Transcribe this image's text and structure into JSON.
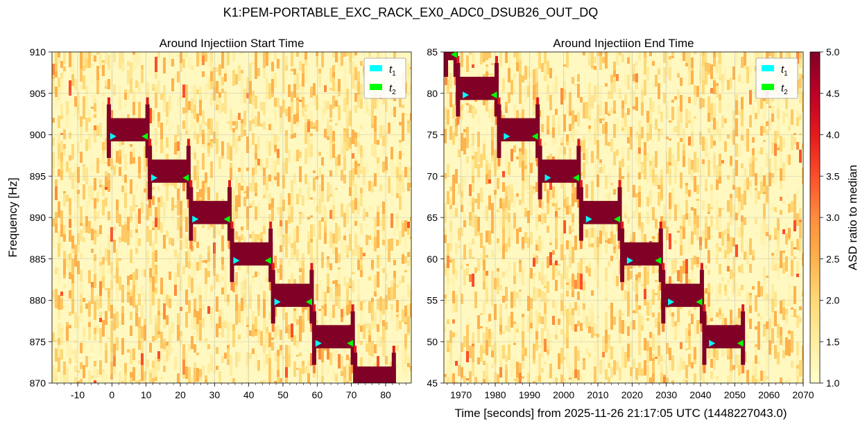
{
  "figure": {
    "title": "K1:PEM-PORTABLE_EXC_RACK_EX0_ADC0_DSUB26_OUT_DQ",
    "xlabel": "Time [seconds] from 2025-11-26 21:17:05 UTC (1448227043.0)"
  },
  "colors": {
    "low": "#fffecb",
    "mid_low": "#fed976",
    "mid": "#fd8d3c",
    "high": "#e31a1c",
    "max": "#800026",
    "t1_marker": "#00ffff",
    "t2_marker": "#00ff00",
    "grid": "#b0b0b0"
  },
  "chart_data": [
    {
      "type": "heatmap",
      "title": "Around Injectiion Start Time",
      "ylabel": "Frequency [Hz]",
      "xlim": [
        -17.5,
        87.5
      ],
      "ylim": [
        870,
        910
      ],
      "xticks": [
        -10,
        0,
        10,
        20,
        30,
        40,
        50,
        60,
        70,
        80
      ],
      "xtick_labels": [
        "-10",
        "0",
        "10",
        "20",
        "30",
        "40",
        "50",
        "60",
        "70",
        "80"
      ],
      "yticks": [
        870,
        875,
        880,
        885,
        890,
        895,
        900,
        905,
        910
      ],
      "ytick_labels": [
        "870",
        "875",
        "880",
        "885",
        "890",
        "895",
        "900",
        "905",
        "910"
      ],
      "grid": true,
      "legend": {
        "position": "top-right",
        "entries": [
          "t1",
          "t2"
        ]
      },
      "injection_steps": [
        {
          "x0": -1.5,
          "x1": 11,
          "y0": 899.2,
          "y1": 902
        },
        {
          "x0": 10.5,
          "x1": 23,
          "y0": 894.2,
          "y1": 897
        },
        {
          "x0": 22.5,
          "x1": 35,
          "y0": 889.2,
          "y1": 892
        },
        {
          "x0": 34.5,
          "x1": 47,
          "y0": 884.2,
          "y1": 887
        },
        {
          "x0": 46.5,
          "x1": 59,
          "y0": 879.2,
          "y1": 882
        },
        {
          "x0": 58.5,
          "x1": 71,
          "y0": 874.2,
          "y1": 877
        },
        {
          "x0": 70.5,
          "x1": 83,
          "y0": 870,
          "y1": 872
        }
      ],
      "t1_markers": [
        {
          "x": 0.3,
          "y": 899.8
        },
        {
          "x": 12.3,
          "y": 894.8
        },
        {
          "x": 24.3,
          "y": 889.8
        },
        {
          "x": 36.3,
          "y": 884.8
        },
        {
          "x": 48.3,
          "y": 879.8
        },
        {
          "x": 60.3,
          "y": 874.8
        }
      ],
      "t2_markers": [
        {
          "x": 9.7,
          "y": 899.8
        },
        {
          "x": 21.7,
          "y": 894.8
        },
        {
          "x": 33.7,
          "y": 889.8
        },
        {
          "x": 45.7,
          "y": 884.8
        },
        {
          "x": 57.7,
          "y": 879.8
        },
        {
          "x": 69.7,
          "y": 874.8
        }
      ]
    },
    {
      "type": "heatmap",
      "title": "Around Injectiion End Time",
      "ylabel": "",
      "xlim": [
        1965,
        2070
      ],
      "ylim": [
        45,
        85
      ],
      "xticks": [
        1970,
        1980,
        1990,
        2000,
        2010,
        2020,
        2030,
        2040,
        2050,
        2060,
        2070
      ],
      "xtick_labels": [
        "1970",
        "1980",
        "1990",
        "2000",
        "2010",
        "2020",
        "2030",
        "2040",
        "2050",
        "2060",
        "2070"
      ],
      "yticks": [
        45,
        50,
        55,
        60,
        65,
        70,
        75,
        80,
        85
      ],
      "ytick_labels": [
        "45",
        "50",
        "55",
        "60",
        "65",
        "70",
        "75",
        "80",
        "85"
      ],
      "grid": true,
      "legend": {
        "position": "top-right",
        "entries": [
          "t1",
          "t2"
        ]
      },
      "injection_steps": [
        {
          "x0": 1965,
          "x1": 1969,
          "y0": 84,
          "y1": 85
        },
        {
          "x0": 1968.5,
          "x1": 1981,
          "y0": 79.2,
          "y1": 82
        },
        {
          "x0": 1980.5,
          "x1": 1993,
          "y0": 74.2,
          "y1": 77
        },
        {
          "x0": 1992.5,
          "x1": 2005,
          "y0": 69.2,
          "y1": 72
        },
        {
          "x0": 2004.5,
          "x1": 2017,
          "y0": 64.2,
          "y1": 67
        },
        {
          "x0": 2016.5,
          "x1": 2029,
          "y0": 59.2,
          "y1": 62
        },
        {
          "x0": 2028.5,
          "x1": 2041,
          "y0": 54.2,
          "y1": 57
        },
        {
          "x0": 2040.5,
          "x1": 2053,
          "y0": 49.2,
          "y1": 52
        }
      ],
      "t1_markers": [
        {
          "x": 1971.3,
          "y": 79.8
        },
        {
          "x": 1983.3,
          "y": 74.8
        },
        {
          "x": 1995.3,
          "y": 69.8
        },
        {
          "x": 2007.3,
          "y": 64.8
        },
        {
          "x": 2019.3,
          "y": 59.8
        },
        {
          "x": 2031.3,
          "y": 54.8
        },
        {
          "x": 2043.3,
          "y": 49.8
        }
      ],
      "t2_markers": [
        {
          "x": 1968,
          "y": 84.7
        },
        {
          "x": 1979.7,
          "y": 79.8
        },
        {
          "x": 1991.7,
          "y": 74.8
        },
        {
          "x": 2003.7,
          "y": 69.8
        },
        {
          "x": 2015.7,
          "y": 64.8
        },
        {
          "x": 2027.7,
          "y": 59.8
        },
        {
          "x": 2039.7,
          "y": 54.8
        },
        {
          "x": 2051.7,
          "y": 49.8
        }
      ]
    }
  ],
  "colorbar": {
    "label": "ASD ratio to median",
    "range": [
      1.0,
      5.0
    ],
    "ticks": [
      1.0,
      1.5,
      2.0,
      2.5,
      3.0,
      3.5,
      4.0,
      4.5,
      5.0
    ],
    "tick_labels": [
      "1.0",
      "1.5",
      "2.0",
      "2.5",
      "3.0",
      "3.5",
      "4.0",
      "4.5",
      "5.0"
    ]
  },
  "legend_labels": {
    "t1": "t",
    "t1_sub": "1",
    "t2": "t",
    "t2_sub": "2"
  }
}
